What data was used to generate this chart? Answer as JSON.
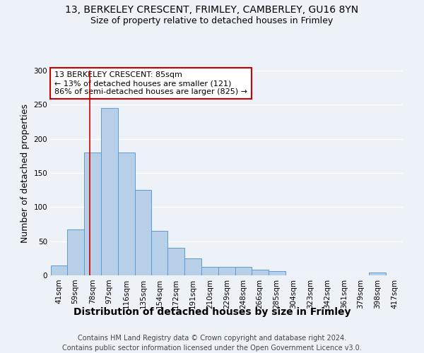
{
  "title1": "13, BERKELEY CRESCENT, FRIMLEY, CAMBERLEY, GU16 8YN",
  "title2": "Size of property relative to detached houses in Frimley",
  "xlabel": "Distribution of detached houses by size in Frimley",
  "ylabel": "Number of detached properties",
  "footer1": "Contains HM Land Registry data © Crown copyright and database right 2024.",
  "footer2": "Contains public sector information licensed under the Open Government Licence v3.0.",
  "annotation_line1": "13 BERKELEY CRESCENT: 85sqm",
  "annotation_line2": "← 13% of detached houses are smaller (121)",
  "annotation_line3": "86% of semi-detached houses are larger (825) →",
  "property_size_sqm": 85,
  "bar_labels": [
    "41sqm",
    "59sqm",
    "78sqm",
    "97sqm",
    "116sqm",
    "135sqm",
    "154sqm",
    "172sqm",
    "191sqm",
    "210sqm",
    "229sqm",
    "248sqm",
    "266sqm",
    "285sqm",
    "304sqm",
    "323sqm",
    "342sqm",
    "361sqm",
    "379sqm",
    "398sqm",
    "417sqm"
  ],
  "bar_values": [
    15,
    67,
    180,
    245,
    180,
    125,
    65,
    40,
    25,
    12,
    12,
    12,
    8,
    6,
    0,
    0,
    0,
    0,
    0,
    4,
    0
  ],
  "bar_edges": [
    41,
    59,
    78,
    97,
    116,
    135,
    154,
    172,
    191,
    210,
    229,
    248,
    266,
    285,
    304,
    323,
    342,
    361,
    379,
    398,
    417,
    436
  ],
  "bar_color": "#b8cfe8",
  "bar_edge_color": "#5b9bd5",
  "vline_color": "#cc0000",
  "vline_x": 85,
  "annotation_box_color": "#ffffff",
  "annotation_box_edge": "#cc0000",
  "ylim": [
    0,
    300
  ],
  "yticks": [
    0,
    50,
    100,
    150,
    200,
    250,
    300
  ],
  "background_color": "#edf2f9",
  "grid_color": "#ffffff",
  "title_fontsize": 10,
  "subtitle_fontsize": 9,
  "axis_label_fontsize": 9,
  "tick_fontsize": 7.5,
  "annotation_fontsize": 8,
  "footer_fontsize": 7
}
